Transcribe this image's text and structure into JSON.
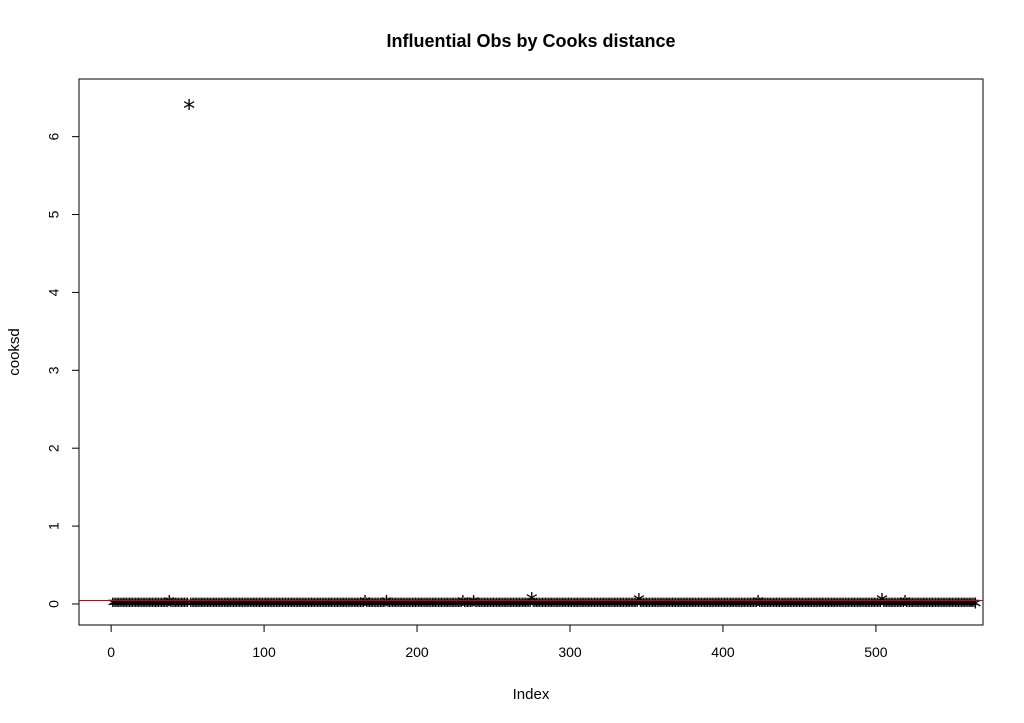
{
  "chart_data": {
    "type": "scatter",
    "title": "Influential Obs by Cooks distance",
    "xlabel": "Index",
    "ylabel": "cooksd",
    "xlim": [
      -21,
      570
    ],
    "ylim": [
      -0.27,
      6.74
    ],
    "x_ticks": [
      0,
      100,
      200,
      300,
      400,
      500
    ],
    "y_ticks": [
      0,
      1,
      2,
      3,
      4,
      5,
      6
    ],
    "x_tick_labels": [
      "0",
      "100",
      "200",
      "300",
      "400",
      "500"
    ],
    "y_tick_labels": [
      "0",
      "1",
      "2",
      "3",
      "4",
      "5",
      "6"
    ],
    "marker": "*",
    "marker_color": "#000000",
    "n_points": 565,
    "baseline_value": 0.0,
    "highlights": [
      {
        "x": 51,
        "y": 6.39
      },
      {
        "x": 275,
        "y": 0.06
      },
      {
        "x": 345,
        "y": 0.05
      },
      {
        "x": 504,
        "y": 0.05
      },
      {
        "x": 38,
        "y": 0.02
      },
      {
        "x": 166,
        "y": 0.02
      },
      {
        "x": 180,
        "y": 0.02
      },
      {
        "x": 230,
        "y": 0.02
      },
      {
        "x": 237,
        "y": 0.02
      },
      {
        "x": 423,
        "y": 0.02
      },
      {
        "x": 519,
        "y": 0.02
      },
      {
        "x": 565,
        "y": -0.01
      }
    ],
    "reference_line": {
      "y": 0.045,
      "color": "#cc0000"
    },
    "grid": false,
    "legend": false
  }
}
